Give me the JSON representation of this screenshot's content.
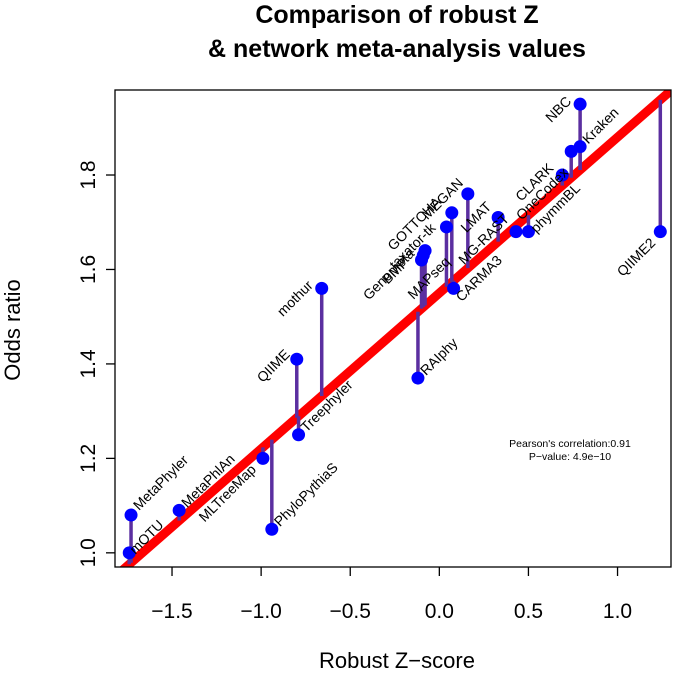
{
  "chart_data": {
    "type": "scatter",
    "title": [
      "Comparison of robust Z",
      "& network meta-analysis values"
    ],
    "xlabel": "Robust Z−score",
    "ylabel": "Odds ratio",
    "xlim": [
      -1.82,
      1.3
    ],
    "ylim": [
      0.97,
      1.98
    ],
    "x_ticks": [
      {
        "value": -1.5,
        "label": "−1.5"
      },
      {
        "value": -1.0,
        "label": "−1.0"
      },
      {
        "value": -0.5,
        "label": "−0.5"
      },
      {
        "value": 0.0,
        "label": "0.0"
      },
      {
        "value": 0.5,
        "label": "0.5"
      },
      {
        "value": 1.0,
        "label": "1.0"
      }
    ],
    "y_ticks": [
      {
        "value": 1.0,
        "label": "1.0"
      },
      {
        "value": 1.2,
        "label": "1.2"
      },
      {
        "value": 1.4,
        "label": "1.4"
      },
      {
        "value": 1.6,
        "label": "1.6"
      },
      {
        "value": 1.8,
        "label": "1.8"
      }
    ],
    "fit_line": {
      "intercept": 1.55,
      "slope": 0.33,
      "color": "#ff0000"
    },
    "residual_color": "#5b2fa0",
    "point_color": "#0000ff",
    "annotation": {
      "line1": "Pearson's correlation:0.91",
      "line2": "P−value: 4.9e−10"
    },
    "points": [
      {
        "name": "MetaPhyler",
        "x": -1.73,
        "y": 1.08
      },
      {
        "name": "mOTU",
        "x": -1.74,
        "y": 1.0
      },
      {
        "name": "MetaPhlAn",
        "x": -1.46,
        "y": 1.09
      },
      {
        "name": "MLTreeMap",
        "x": -0.99,
        "y": 1.2
      },
      {
        "name": "PhyloPythiaS",
        "x": -0.94,
        "y": 1.05
      },
      {
        "name": "QIIME",
        "x": -0.8,
        "y": 1.41
      },
      {
        "name": "Treephyler",
        "x": -0.79,
        "y": 1.25
      },
      {
        "name": "mothur",
        "x": -0.66,
        "y": 1.56
      },
      {
        "name": "RAIphy",
        "x": -0.12,
        "y": 1.37
      },
      {
        "name": "MAPseq",
        "x": -0.1,
        "y": 1.62
      },
      {
        "name": "BMP",
        "x": -0.09,
        "y": 1.63
      },
      {
        "name": "Genometa",
        "x": -0.08,
        "y": 1.64
      },
      {
        "name": "taxator-tk",
        "x": 0.04,
        "y": 1.69
      },
      {
        "name": "GOTTCHA",
        "x": 0.07,
        "y": 1.72
      },
      {
        "name": "CARMA3",
        "x": 0.08,
        "y": 1.56
      },
      {
        "name": "MEGAN",
        "x": 0.16,
        "y": 1.76
      },
      {
        "name": "LMAT",
        "x": 0.33,
        "y": 1.71
      },
      {
        "name": "MG-RAST",
        "x": 0.43,
        "y": 1.68
      },
      {
        "name": "phymmBL",
        "x": 0.5,
        "y": 1.68
      },
      {
        "name": "CLARK",
        "x": 0.69,
        "y": 1.8
      },
      {
        "name": "OneCodex",
        "x": 0.74,
        "y": 1.85
      },
      {
        "name": "Kraken",
        "x": 0.79,
        "y": 1.86
      },
      {
        "name": "NBC",
        "x": 0.79,
        "y": 1.95
      },
      {
        "name": "QIIME2",
        "x": 1.24,
        "y": 1.68
      }
    ]
  }
}
